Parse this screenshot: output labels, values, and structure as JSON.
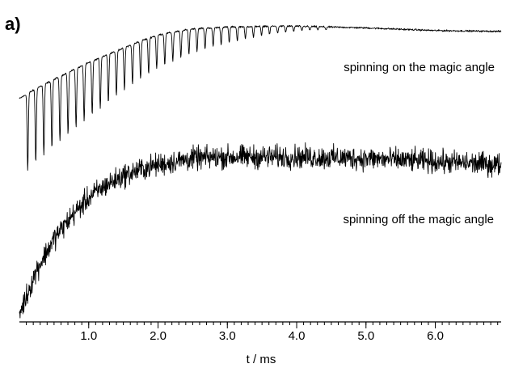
{
  "chart_data": {
    "type": "line",
    "panel_label": "a)",
    "xlabel": "t / ms",
    "xlim": [
      0.0,
      6.95
    ],
    "x_ticks": [
      "1.0",
      "2.0",
      "3.0",
      "4.0",
      "5.0",
      "6.0"
    ],
    "x_tick_values": [
      1.0,
      2.0,
      3.0,
      4.0,
      5.0,
      6.0
    ],
    "minor_tick_step": 0.1,
    "ylabel": "",
    "y_axis_shown": false,
    "grid": false,
    "legend": "none",
    "series": [
      {
        "label": "spinning on the magic angle",
        "color": "#000000",
        "noise": 0.012,
        "envelope": {
          "x": [
            0.0,
            0.25,
            0.5,
            0.75,
            1.0,
            1.25,
            1.5,
            1.75,
            2.0,
            2.5,
            3.0,
            3.5,
            4.0,
            5.0,
            6.0,
            6.95
          ],
          "y": [
            0.0,
            0.12,
            0.22,
            0.32,
            0.41,
            0.5,
            0.58,
            0.66,
            0.73,
            0.8,
            0.82,
            0.83,
            0.83,
            0.81,
            0.78,
            0.77
          ]
        },
        "rotational_echoes": {
          "start_ms": 0.12,
          "period_ms": 0.1163,
          "end_ms": 4.5,
          "depth_start": 0.85,
          "depth_end": 0.03
        }
      },
      {
        "label": "spinning off the magic angle",
        "color": "#000000",
        "noise": 0.09,
        "envelope": {
          "x": [
            0.0,
            0.25,
            0.5,
            0.75,
            1.0,
            1.25,
            1.5,
            1.75,
            2.0,
            2.5,
            3.0,
            3.5,
            4.0,
            5.0,
            6.0,
            6.95
          ],
          "y": [
            0.0,
            0.28,
            0.48,
            0.62,
            0.74,
            0.82,
            0.88,
            0.92,
            0.95,
            0.99,
            1.0,
            1.0,
            1.0,
            0.99,
            0.97,
            0.95
          ]
        }
      }
    ]
  }
}
